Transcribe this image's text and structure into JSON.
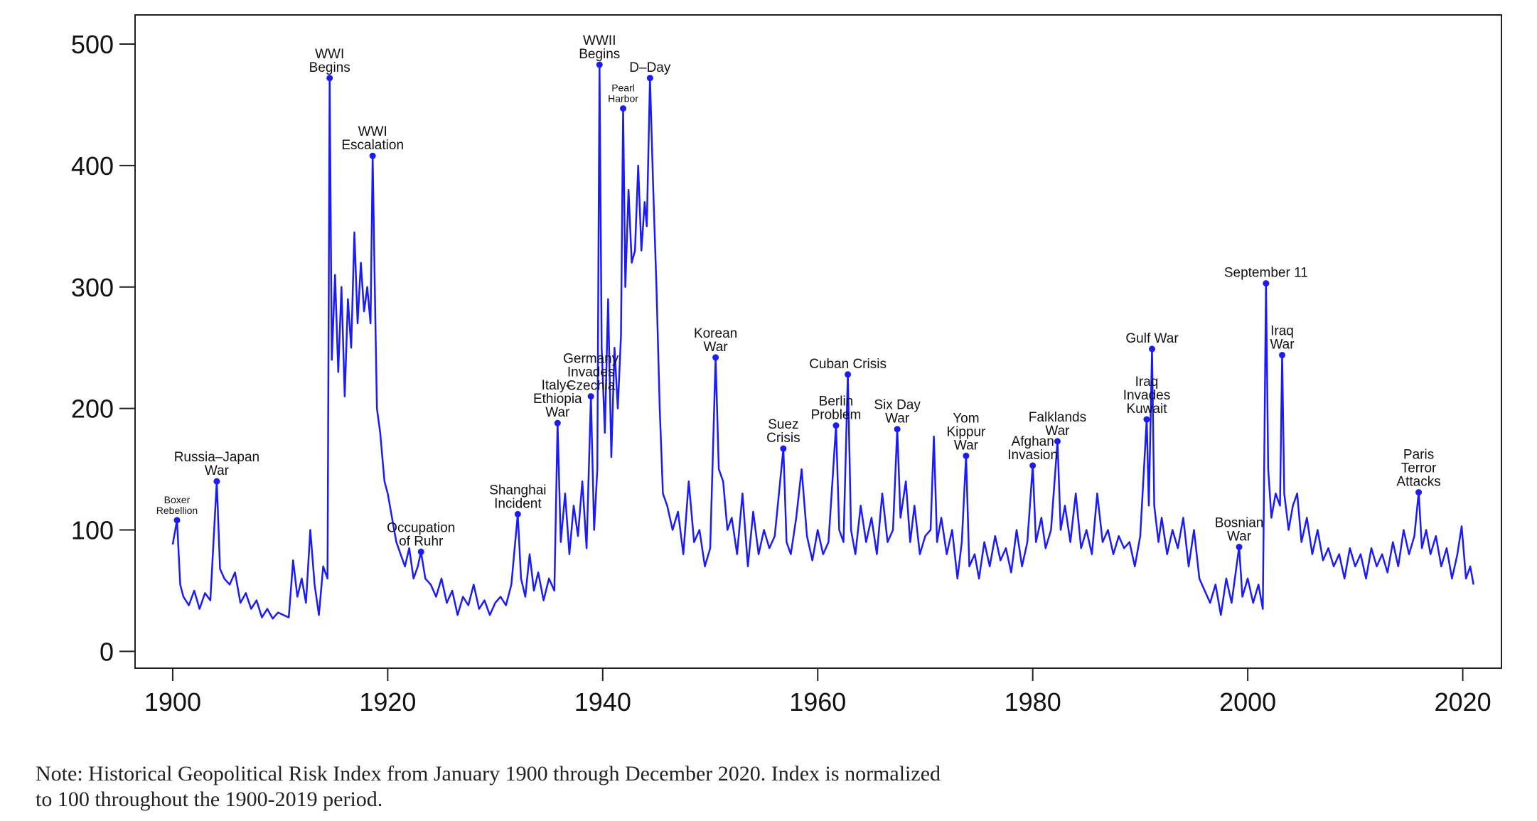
{
  "chart_data": {
    "type": "line",
    "xlim": [
      1896.5,
      2023.6
    ],
    "ylim": [
      -13.8,
      524
    ],
    "xticks": [
      1900,
      1920,
      1940,
      1960,
      1980,
      2000,
      2020
    ],
    "yticks": [
      0,
      100,
      200,
      300,
      400,
      500
    ],
    "series": [
      {
        "color": "#1a1aff",
        "x": [
          1900.0,
          1900.4,
          1900.7,
          1901,
          1901.5,
          1902,
          1902.5,
          1903,
          1903.5,
          1904.1,
          1904.4,
          1904.8,
          1905.3,
          1905.8,
          1906.3,
          1906.8,
          1907.3,
          1907.8,
          1908.3,
          1908.8,
          1909.3,
          1909.8,
          1910.3,
          1910.8,
          1911.2,
          1911.6,
          1912.0,
          1912.4,
          1912.8,
          1913.2,
          1913.6,
          1914.0,
          1914.4,
          1914.6,
          1914.8,
          1915.1,
          1915.4,
          1915.7,
          1916.0,
          1916.3,
          1916.6,
          1916.9,
          1917.2,
          1917.5,
          1917.8,
          1918.1,
          1918.4,
          1918.6,
          1918.8,
          1919.0,
          1919.3,
          1919.7,
          1920.0,
          1920.4,
          1920.8,
          1921.2,
          1921.6,
          1922.0,
          1922.4,
          1922.8,
          1923.1,
          1923.5,
          1924.0,
          1924.5,
          1925.0,
          1925.5,
          1926.0,
          1926.5,
          1927.0,
          1927.5,
          1928.0,
          1928.5,
          1929.0,
          1929.5,
          1930.0,
          1930.5,
          1931.0,
          1931.5,
          1932.1,
          1932.4,
          1932.8,
          1933.2,
          1933.6,
          1934.0,
          1934.5,
          1935.0,
          1935.5,
          1935.8,
          1936.1,
          1936.5,
          1936.9,
          1937.3,
          1937.7,
          1938.1,
          1938.5,
          1938.9,
          1939.2,
          1939.5,
          1939.7,
          1939.9,
          1940.2,
          1940.5,
          1940.8,
          1941.1,
          1941.4,
          1941.7,
          1941.9,
          1942.1,
          1942.4,
          1942.7,
          1943.0,
          1943.3,
          1943.6,
          1943.9,
          1944.1,
          1944.4,
          1944.7,
          1945.0,
          1945.3,
          1945.6,
          1946.0,
          1946.5,
          1947.0,
          1947.5,
          1948.0,
          1948.5,
          1949.0,
          1949.5,
          1950.0,
          1950.5,
          1950.8,
          1951.2,
          1951.6,
          1952.0,
          1952.5,
          1953.0,
          1953.5,
          1954.0,
          1954.5,
          1955.0,
          1955.5,
          1956.0,
          1956.8,
          1957.1,
          1957.5,
          1958.0,
          1958.5,
          1959.0,
          1959.5,
          1960.0,
          1960.5,
          1961.0,
          1961.7,
          1962.0,
          1962.4,
          1962.8,
          1963.1,
          1963.5,
          1964.0,
          1964.5,
          1965.0,
          1965.5,
          1966.0,
          1966.5,
          1967.0,
          1967.4,
          1967.7,
          1968.2,
          1968.6,
          1969.0,
          1969.5,
          1970.0,
          1970.5,
          1970.8,
          1971.1,
          1971.5,
          1972.0,
          1972.5,
          1973.0,
          1973.4,
          1973.8,
          1974.1,
          1974.6,
          1975.0,
          1975.5,
          1976.0,
          1976.5,
          1977.0,
          1977.5,
          1978.0,
          1978.5,
          1979.0,
          1979.5,
          1980.0,
          1980.3,
          1980.8,
          1981.2,
          1981.7,
          1982.3,
          1982.6,
          1983.0,
          1983.5,
          1984.0,
          1984.5,
          1985.0,
          1985.5,
          1986.0,
          1986.5,
          1987.0,
          1987.5,
          1988.0,
          1988.5,
          1989.0,
          1989.5,
          1990.0,
          1990.6,
          1990.8,
          1991.1,
          1991.3,
          1991.7,
          1992.0,
          1992.5,
          1993.0,
          1993.5,
          1994.0,
          1994.5,
          1995.0,
          1995.5,
          1996.0,
          1996.5,
          1997.0,
          1997.5,
          1998.0,
          1998.5,
          1999.2,
          1999.5,
          2000.0,
          2000.5,
          2001.0,
          2001.4,
          2001.7,
          2001.9,
          2002.2,
          2002.6,
          2003.0,
          2003.2,
          2003.4,
          2003.8,
          2004.2,
          2004.6,
          2005.0,
          2005.5,
          2006.0,
          2006.5,
          2007.0,
          2007.5,
          2008.0,
          2008.5,
          2009.0,
          2009.5,
          2010.0,
          2010.5,
          2011.0,
          2011.5,
          2012.0,
          2012.5,
          2013.0,
          2013.5,
          2014.0,
          2014.5,
          2015.0,
          2015.5,
          2015.9,
          2016.2,
          2016.6,
          2017.0,
          2017.5,
          2018.0,
          2018.5,
          2019.0,
          2019.5,
          2019.9,
          2020.3,
          2020.7,
          2021.0
        ],
        "values": [
          88,
          108,
          55,
          45,
          38,
          50,
          35,
          48,
          42,
          140,
          68,
          60,
          55,
          65,
          40,
          48,
          35,
          42,
          28,
          35,
          27,
          32,
          30,
          28,
          75,
          45,
          60,
          40,
          100,
          55,
          30,
          70,
          60,
          472,
          240,
          310,
          230,
          300,
          210,
          290,
          250,
          345,
          270,
          320,
          280,
          300,
          270,
          408,
          300,
          200,
          180,
          140,
          130,
          110,
          90,
          80,
          70,
          85,
          60,
          70,
          82,
          60,
          55,
          45,
          60,
          40,
          50,
          30,
          45,
          38,
          55,
          35,
          42,
          30,
          40,
          45,
          38,
          55,
          113,
          60,
          45,
          80,
          50,
          65,
          42,
          60,
          50,
          188,
          90,
          130,
          80,
          120,
          95,
          140,
          85,
          210,
          100,
          150,
          483,
          250,
          180,
          290,
          160,
          250,
          200,
          260,
          447,
          300,
          380,
          320,
          330,
          400,
          330,
          370,
          350,
          472,
          380,
          300,
          200,
          130,
          120,
          100,
          115,
          80,
          140,
          90,
          100,
          70,
          85,
          242,
          150,
          140,
          100,
          110,
          80,
          130,
          70,
          115,
          80,
          100,
          85,
          95,
          167,
          90,
          80,
          110,
          150,
          95,
          75,
          100,
          80,
          90,
          186,
          100,
          90,
          228,
          100,
          80,
          120,
          90,
          110,
          80,
          130,
          90,
          100,
          183,
          110,
          140,
          90,
          120,
          80,
          95,
          100,
          177,
          90,
          110,
          80,
          100,
          60,
          90,
          161,
          70,
          80,
          60,
          90,
          70,
          95,
          75,
          85,
          65,
          100,
          70,
          90,
          153,
          90,
          110,
          85,
          100,
          173,
          100,
          120,
          90,
          130,
          85,
          100,
          80,
          130,
          90,
          100,
          80,
          95,
          85,
          90,
          70,
          95,
          191,
          120,
          249,
          120,
          90,
          110,
          80,
          100,
          85,
          110,
          70,
          100,
          60,
          50,
          40,
          55,
          30,
          60,
          40,
          86,
          45,
          60,
          40,
          55,
          35,
          303,
          150,
          110,
          130,
          120,
          244,
          130,
          100,
          120,
          130,
          90,
          110,
          80,
          100,
          75,
          85,
          70,
          80,
          60,
          85,
          70,
          80,
          60,
          85,
          70,
          80,
          65,
          90,
          70,
          100,
          80,
          95,
          131,
          85,
          100,
          80,
          95,
          70,
          85,
          60,
          80,
          103,
          60,
          70,
          55
        ]
      }
    ],
    "annotations": [
      {
        "label": [
          "Boxer",
          "Rebellion"
        ],
        "x": 1900.4,
        "y": 108
      },
      {
        "label": [
          "Russia–Japan",
          "War"
        ],
        "x": 1904.1,
        "y": 140
      },
      {
        "label": [
          "WWI",
          "Begins"
        ],
        "x": 1914.6,
        "y": 472
      },
      {
        "label": [
          "WWI",
          "Escalation"
        ],
        "x": 1918.6,
        "y": 408
      },
      {
        "label": [
          "Occupation",
          "of Ruhr"
        ],
        "x": 1923.1,
        "y": 82
      },
      {
        "label": [
          "Shanghai",
          "Incident"
        ],
        "x": 1932.1,
        "y": 113
      },
      {
        "label": [
          "Italy–",
          "Ethiopia",
          "War"
        ],
        "x": 1935.8,
        "y": 188
      },
      {
        "label": [
          "Germany",
          "Invades",
          "Czechia"
        ],
        "x": 1938.9,
        "y": 210
      },
      {
        "label": [
          "WWII",
          "Begins"
        ],
        "x": 1939.7,
        "y": 483
      },
      {
        "label": [
          "Pearl",
          "Harbor"
        ],
        "x": 1941.9,
        "y": 447
      },
      {
        "label": [
          "D–Day"
        ],
        "x": 1944.4,
        "y": 472
      },
      {
        "label": [
          "Korean",
          "War"
        ],
        "x": 1950.5,
        "y": 242
      },
      {
        "label": [
          "Suez",
          "Crisis"
        ],
        "x": 1956.8,
        "y": 167
      },
      {
        "label": [
          "Berlin",
          "Problem"
        ],
        "x": 1961.7,
        "y": 186
      },
      {
        "label": [
          "Cuban Crisis"
        ],
        "x": 1962.8,
        "y": 228
      },
      {
        "label": [
          "Six Day",
          "War"
        ],
        "x": 1967.4,
        "y": 183
      },
      {
        "label": [
          "Yom",
          "Kippur",
          "War"
        ],
        "x": 1973.8,
        "y": 161
      },
      {
        "label": [
          "Afghan",
          "Invasion"
        ],
        "x": 1980.0,
        "y": 153
      },
      {
        "label": [
          "Falklands",
          "War"
        ],
        "x": 1982.3,
        "y": 173
      },
      {
        "label": [
          "Iraq",
          "Invades",
          "Kuwait"
        ],
        "x": 1990.6,
        "y": 191
      },
      {
        "label": [
          "Gulf War"
        ],
        "x": 1991.1,
        "y": 249
      },
      {
        "label": [
          "Bosnian",
          "War"
        ],
        "x": 1999.2,
        "y": 86
      },
      {
        "label": [
          "September 11"
        ],
        "x": 2001.7,
        "y": 303
      },
      {
        "label": [
          "Iraq",
          "War"
        ],
        "x": 2003.2,
        "y": 244
      },
      {
        "label": [
          "Paris",
          "Terror",
          "Attacks"
        ],
        "x": 2015.9,
        "y": 131
      }
    ],
    "note": [
      "Note: Historical Geopolitical Risk Index from January 1900 through December 2020. Index is normalized",
      "to 100 throughout the 1900-2019 period."
    ]
  }
}
